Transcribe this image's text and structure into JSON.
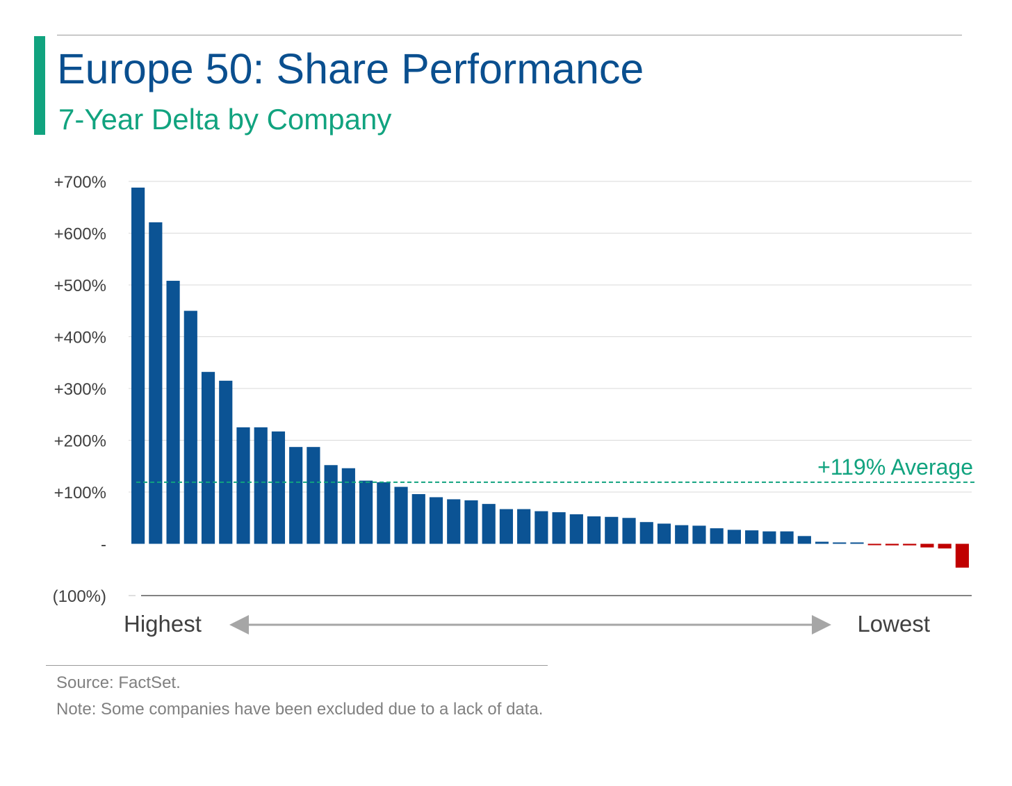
{
  "header": {
    "title": "Europe 50: Share Performance",
    "subtitle": "7-Year Delta by Company"
  },
  "colors": {
    "title": "#0a4f8f",
    "accent": "#11a37f",
    "positive_bar": "#0b5394",
    "negative_bar": "#c00000",
    "average_line": "#11a37f",
    "gridline": "#d9d9d9",
    "axis_text": "#404040",
    "arrow": "#a6a6a6"
  },
  "chart_data": {
    "type": "bar",
    "title": "",
    "xlabel": "",
    "ylabel": "",
    "ylim": [
      -100,
      700
    ],
    "y_ticks": [
      {
        "value": 700,
        "label": "+700%"
      },
      {
        "value": 600,
        "label": "+600%"
      },
      {
        "value": 500,
        "label": "+500%"
      },
      {
        "value": 400,
        "label": "+400%"
      },
      {
        "value": 300,
        "label": "+300%"
      },
      {
        "value": 200,
        "label": "+200%"
      },
      {
        "value": 100,
        "label": "+100%"
      },
      {
        "value": 0,
        "label": "-"
      },
      {
        "value": -100,
        "label": "(100%)"
      }
    ],
    "grid": true,
    "values": [
      688,
      621,
      508,
      450,
      332,
      315,
      225,
      225,
      217,
      187,
      187,
      152,
      146,
      122,
      119,
      110,
      96,
      90,
      86,
      84,
      77,
      67,
      67,
      63,
      61,
      57,
      53,
      52,
      50,
      42,
      39,
      36,
      35,
      30,
      27,
      26,
      24,
      24,
      15,
      4,
      1,
      1,
      -2,
      -3,
      -3,
      -7,
      -9,
      -46
    ],
    "average": {
      "value": 119,
      "label": "+119% Average"
    },
    "order_labels": {
      "left": "Highest",
      "right": "Lowest"
    }
  },
  "footer": {
    "source": "Source: FactSet.",
    "note": "Note: Some companies have been excluded due to a lack of data."
  }
}
